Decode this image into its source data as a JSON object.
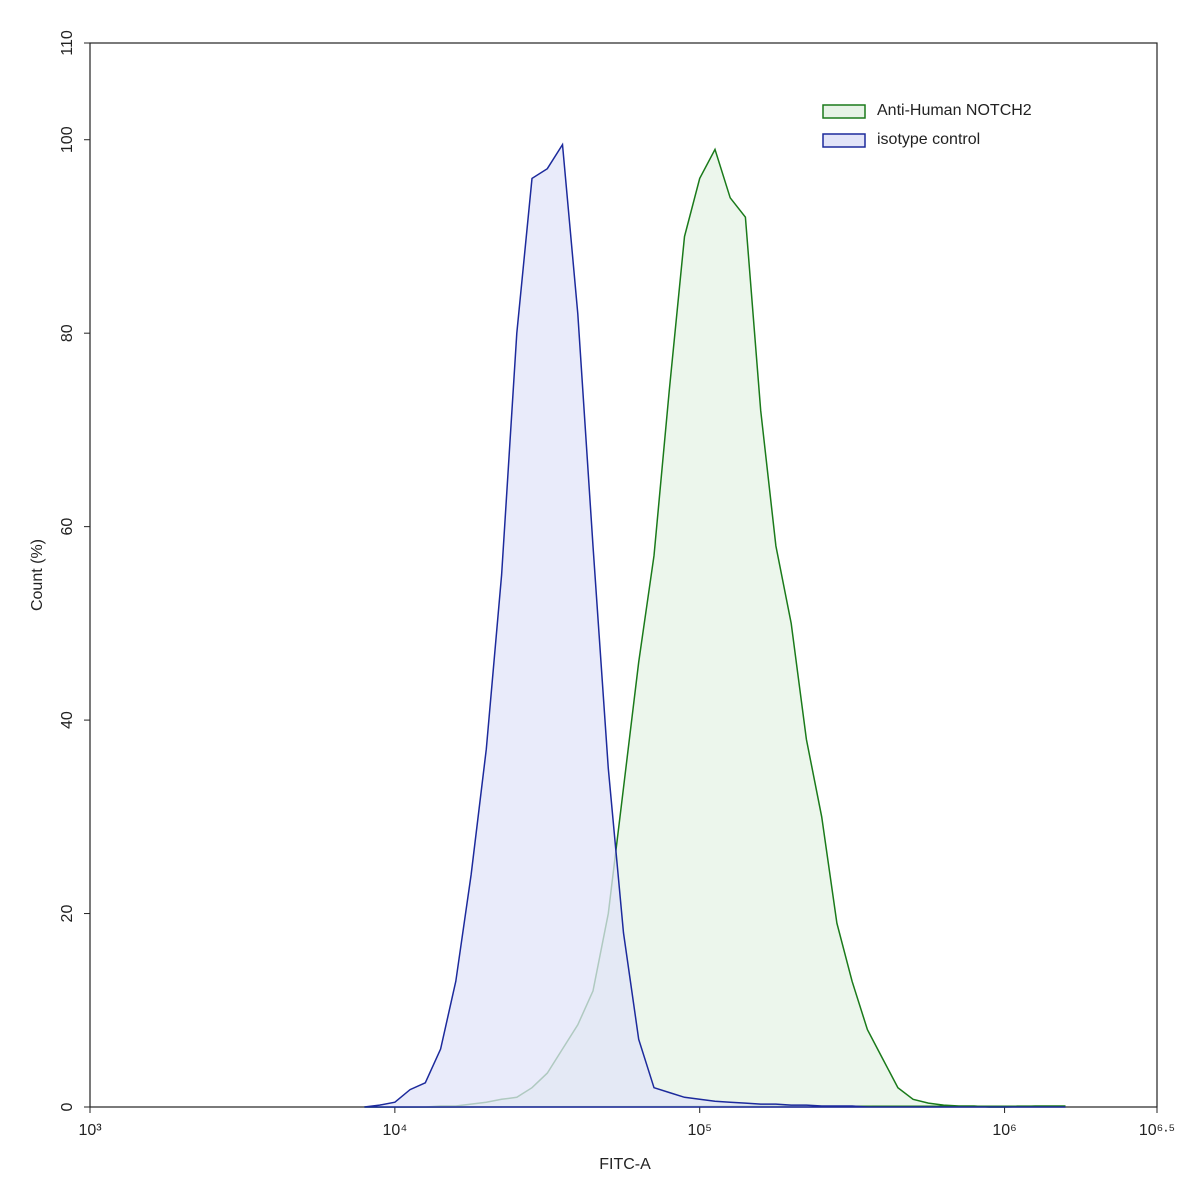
{
  "chart_data": {
    "type": "area",
    "xscale": "log",
    "x_label": "FITC-A",
    "y_label": "Count  (%)",
    "xlim": [
      1000,
      3162278
    ],
    "ylim": [
      0,
      110
    ],
    "xticks": [
      {
        "value": 1000,
        "label": "10³"
      },
      {
        "value": 10000,
        "label": "10⁴"
      },
      {
        "value": 100000,
        "label": "10⁵"
      },
      {
        "value": 1000000,
        "label": "10⁶"
      },
      {
        "value": 3162278,
        "label": "10⁶·⁵"
      }
    ],
    "yticks": [
      0,
      20,
      40,
      60,
      80,
      100,
      110
    ],
    "legend": "upper right",
    "x": [
      7943,
      8913,
      10000,
      11220,
      12589,
      14125,
      15849,
      17783,
      19953,
      22387,
      25119,
      28184,
      31623,
      35481,
      39811,
      44668,
      50119,
      56234,
      63096,
      70795,
      79433,
      89125,
      100000,
      112202,
      125893,
      141254,
      158489,
      177828,
      199526,
      223872,
      251189,
      281838,
      316228,
      354813,
      398107,
      446684,
      501187,
      562341,
      630957,
      707946,
      794328,
      891251,
      1000000,
      1258925,
      1584893
    ],
    "series": [
      {
        "name": "Anti-Human NOTCH2",
        "color": "#1a7a1a",
        "fill": "#e6f3e6",
        "values": [
          0,
          0,
          0,
          0,
          0,
          0.1,
          0.1,
          0.3,
          0.5,
          0.8,
          1,
          2,
          3.5,
          6,
          8.5,
          12,
          20,
          33,
          46,
          57,
          74,
          90,
          96,
          99,
          94,
          92,
          72,
          58,
          50,
          38,
          30,
          19,
          13,
          8,
          5,
          2,
          0.8,
          0.4,
          0.2,
          0.1,
          0.1,
          0,
          0,
          0.1,
          0.1
        ]
      },
      {
        "name": "isotype control",
        "color": "#1c2a9c",
        "fill": "#e2e4f8",
        "values": [
          0,
          0.2,
          0.5,
          1.8,
          2.5,
          6,
          13,
          24,
          37,
          55,
          80,
          96,
          97,
          99.5,
          82,
          58,
          35,
          18,
          7,
          2,
          1.5,
          1,
          0.8,
          0.6,
          0.5,
          0.4,
          0.3,
          0.3,
          0.2,
          0.2,
          0.1,
          0.1,
          0.1,
          0,
          0,
          0,
          0,
          0,
          0,
          0,
          0,
          0,
          0,
          0,
          0
        ]
      }
    ]
  }
}
